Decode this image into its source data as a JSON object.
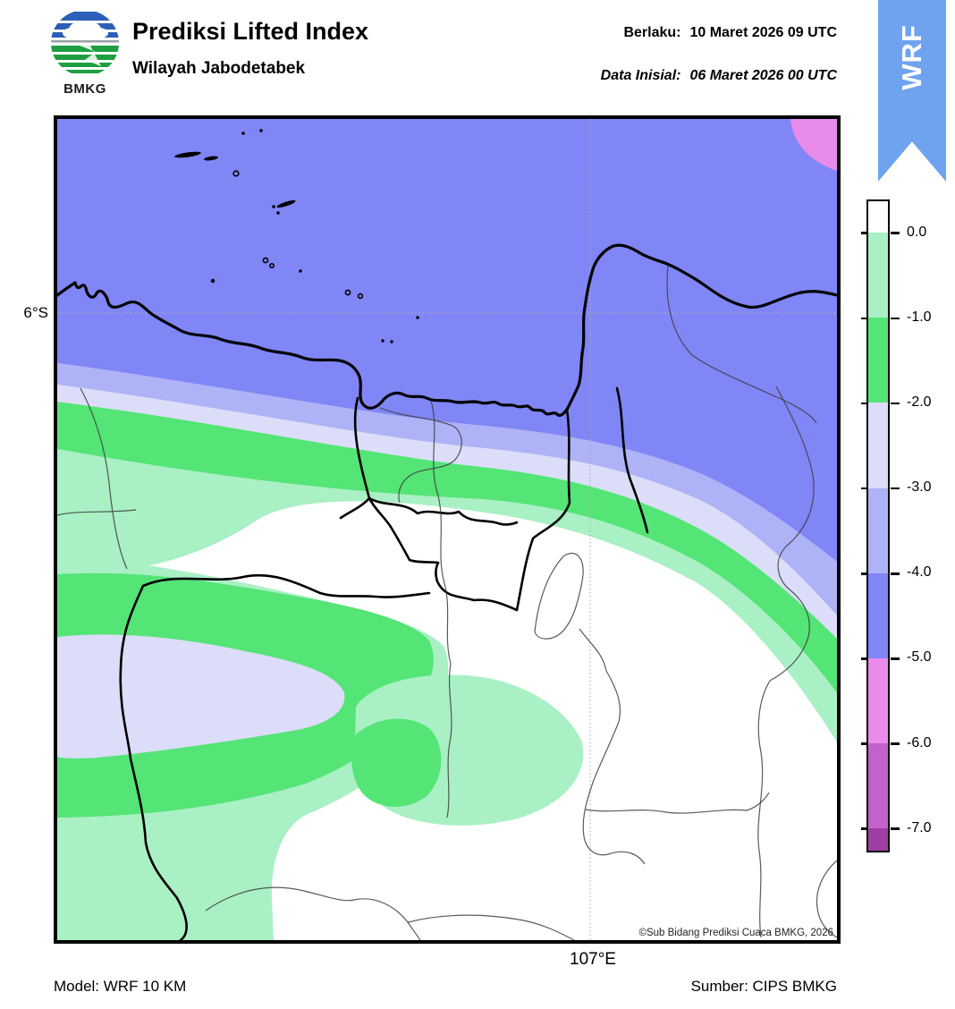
{
  "header": {
    "logo_text": "BMKG",
    "title": "Prediksi Lifted Index",
    "subtitle": "Wilayah Jabodetabek",
    "valid_label": "Berlaku:",
    "valid_value": "10 Maret 2026 09 UTC",
    "init_label": "Data Inisial:",
    "init_value": "06 Maret 2026 00 UTC"
  },
  "ribbon": {
    "label": "WRF",
    "color": "#6FA3EF"
  },
  "map": {
    "lat_label": "6°S",
    "lon_label": "107°E",
    "copyright": "©Sub Bidang Prediksi Cuaca BMKG, 2026"
  },
  "colorbar": {
    "title": "Lifted Index",
    "labels": [
      "0.0",
      "-1.0",
      "-2.0",
      "-3.0",
      "-4.0",
      "-5.0",
      "-6.0",
      "-7.0"
    ],
    "levels": [
      0.0,
      -1.0,
      -2.0,
      -3.0,
      -4.0,
      -5.0,
      -6.0,
      -7.0
    ],
    "colors": [
      "#FFFFFF",
      "#A9F0C5",
      "#55E476",
      "#DBDDF9",
      "#AEB2F6",
      "#8086F6",
      "#E98BEA",
      "#C263CB",
      "#A03FA3"
    ],
    "spans": [
      0.37,
      1,
      1,
      1,
      1,
      1,
      1,
      1,
      0.26
    ]
  },
  "footer": {
    "model": "Model: WRF 10 KM",
    "source": "Sumber: CIPS BMKG"
  }
}
